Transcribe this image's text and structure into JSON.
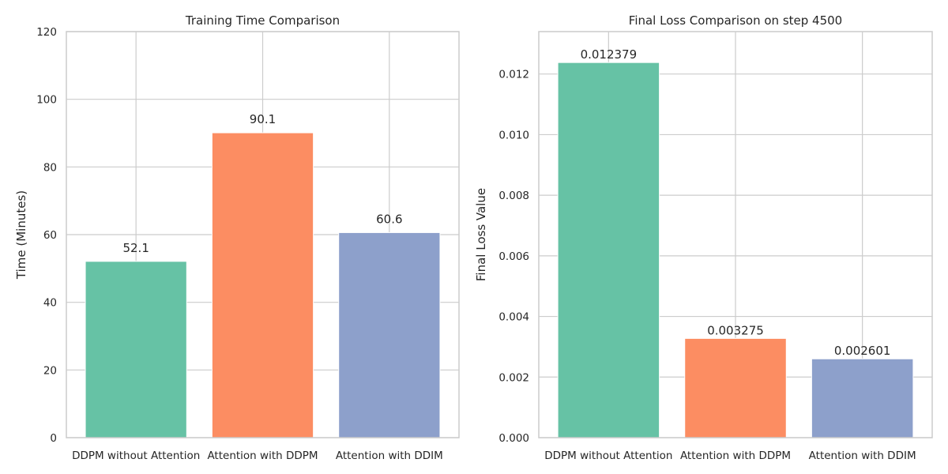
{
  "chart_data": [
    {
      "type": "bar",
      "title": "Training Time Comparison",
      "xlabel": "",
      "ylabel": "Time (Minutes)",
      "categories": [
        "DDPM without Attention",
        "Attention with DDPM",
        "Attention with DDIM"
      ],
      "values": [
        52.1,
        90.1,
        60.6
      ],
      "data_labels": [
        "52.1",
        "90.1",
        "60.6"
      ],
      "colors": [
        "#66c2a5",
        "#fc8d62",
        "#8da0cb"
      ],
      "ylim": [
        0,
        120
      ],
      "yticks": [
        0,
        20,
        40,
        60,
        80,
        100,
        120
      ],
      "ytick_labels": [
        "0",
        "20",
        "40",
        "60",
        "80",
        "100",
        "120"
      ],
      "grid": true,
      "legend": "none"
    },
    {
      "type": "bar",
      "title": "Final Loss Comparison on step 4500",
      "xlabel": "",
      "ylabel": "Final Loss Value",
      "categories": [
        "DDPM without Attention",
        "Attention with DDPM",
        "Attention with DDIM"
      ],
      "values": [
        0.012379,
        0.003275,
        0.002601
      ],
      "data_labels": [
        "0.012379",
        "0.003275",
        "0.002601"
      ],
      "colors": [
        "#66c2a5",
        "#fc8d62",
        "#8da0cb"
      ],
      "ylim": [
        0,
        0.0134
      ],
      "yticks": [
        0,
        0.002,
        0.004,
        0.006,
        0.008,
        0.01,
        0.012
      ],
      "ytick_labels": [
        "0.000",
        "0.002",
        "0.004",
        "0.006",
        "0.008",
        "0.010",
        "0.012"
      ],
      "grid": true,
      "legend": "none"
    }
  ]
}
